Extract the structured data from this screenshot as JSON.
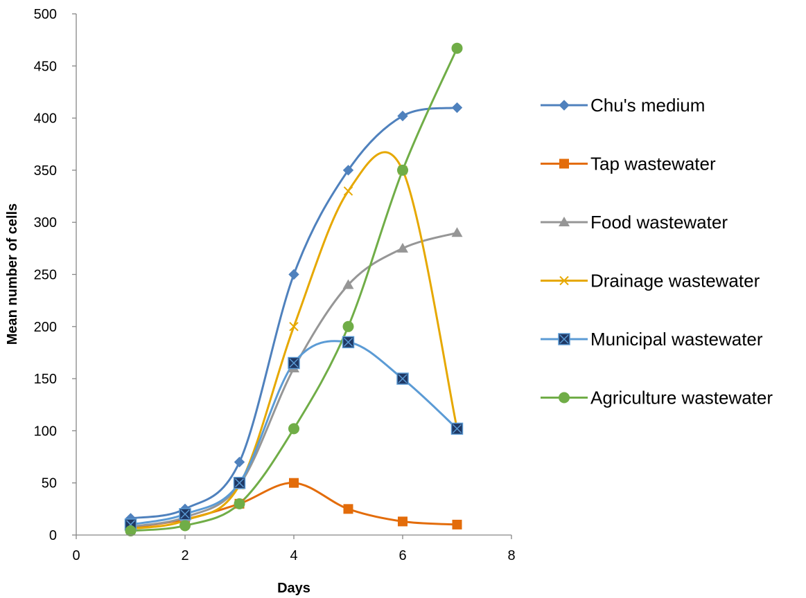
{
  "chart_data": {
    "type": "scatter",
    "title": "",
    "xlabel": "Days",
    "ylabel": "Mean number of cells",
    "xlim": [
      0,
      8
    ],
    "ylim": [
      0,
      500
    ],
    "x_ticks": [
      0,
      2,
      4,
      6,
      8
    ],
    "y_ticks": [
      0,
      50,
      100,
      150,
      200,
      250,
      300,
      350,
      400,
      450,
      500
    ],
    "grid": false,
    "smooth_lines": true,
    "legend_position": "right",
    "series": [
      {
        "name": "Chu's medium",
        "color": "#4F81BD",
        "marker": "diamond",
        "x": [
          1,
          2,
          3,
          4,
          5,
          6,
          7
        ],
        "y": [
          16,
          25,
          70,
          250,
          350,
          402,
          410
        ]
      },
      {
        "name": "Tap wastewater",
        "color": "#E36C0A",
        "marker": "square",
        "x": [
          1,
          2,
          3,
          4,
          5,
          6,
          7
        ],
        "y": [
          7,
          15,
          30,
          50,
          25,
          13,
          10
        ]
      },
      {
        "name": "Food wastewater",
        "color": "#969696",
        "marker": "triangle",
        "x": [
          1,
          2,
          3,
          4,
          5,
          6,
          7
        ],
        "y": [
          8,
          17,
          48,
          160,
          240,
          275,
          290
        ]
      },
      {
        "name": "Drainage wastewater",
        "color": "#E6A800",
        "marker": "x",
        "x": [
          1,
          2,
          3,
          4,
          5,
          6,
          7
        ],
        "y": [
          6,
          14,
          48,
          200,
          330,
          350,
          102
        ]
      },
      {
        "name": "Municipal wastewater",
        "color": "#5B9BD5",
        "marker": "boxed-x",
        "marker_fill": "#1F3864",
        "x": [
          1,
          2,
          3,
          4,
          5,
          6,
          7
        ],
        "y": [
          10,
          20,
          50,
          165,
          185,
          150,
          102
        ]
      },
      {
        "name": "Agriculture wastewater",
        "color": "#70AD47",
        "marker": "circle",
        "x": [
          1,
          2,
          3,
          4,
          5,
          6,
          7
        ],
        "y": [
          4,
          9,
          30,
          102,
          200,
          350,
          467
        ]
      }
    ]
  }
}
